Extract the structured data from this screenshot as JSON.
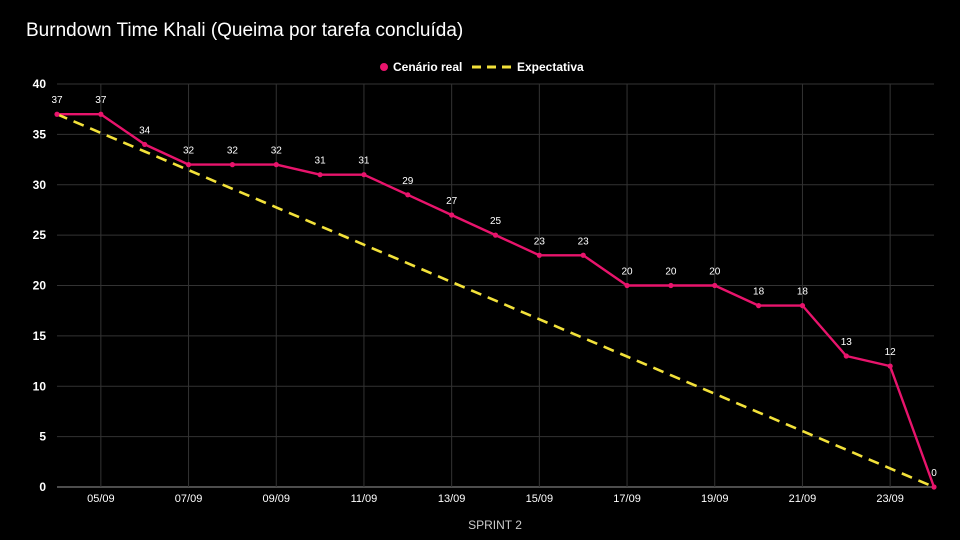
{
  "chart_data": {
    "type": "line",
    "title": "Burndown Time Khali (Queima por tarefa concluída)",
    "xlabel": "SPRINT 2",
    "ylabel": "",
    "ylim": [
      0,
      40
    ],
    "yticks": [
      0,
      5,
      10,
      15,
      20,
      25,
      30,
      35,
      40
    ],
    "grid": true,
    "legend_position": "top-center",
    "x": [
      "04/09",
      "05/09",
      "06/09",
      "07/09",
      "08/09",
      "09/09",
      "10/09",
      "11/09",
      "12/09",
      "13/09",
      "14/09",
      "15/09",
      "16/09",
      "17/09",
      "18/09",
      "19/09",
      "20/09",
      "21/09",
      "22/09",
      "23/09",
      "24/09"
    ],
    "x_tick_labels": [
      "05/09",
      "07/09",
      "09/09",
      "11/09",
      "13/09",
      "15/09",
      "17/09",
      "19/09",
      "21/09",
      "23/09"
    ],
    "series": [
      {
        "name": "Cenário real",
        "color": "#e8146c",
        "style": "solid",
        "markers": true,
        "data_labels": true,
        "values": [
          37,
          37,
          34,
          32,
          32,
          32,
          31,
          31,
          29,
          27,
          25,
          23,
          23,
          20,
          20,
          20,
          18,
          18,
          13,
          12,
          0
        ]
      },
      {
        "name": "Expectativa",
        "color": "#f2e13a",
        "style": "dashed",
        "markers": false,
        "data_labels": false,
        "values": [
          37,
          35.15,
          33.3,
          31.45,
          29.6,
          27.75,
          25.9,
          24.05,
          22.2,
          20.35,
          18.5,
          16.65,
          14.8,
          12.95,
          11.1,
          9.25,
          7.4,
          5.55,
          3.7,
          1.85,
          0
        ]
      }
    ]
  }
}
